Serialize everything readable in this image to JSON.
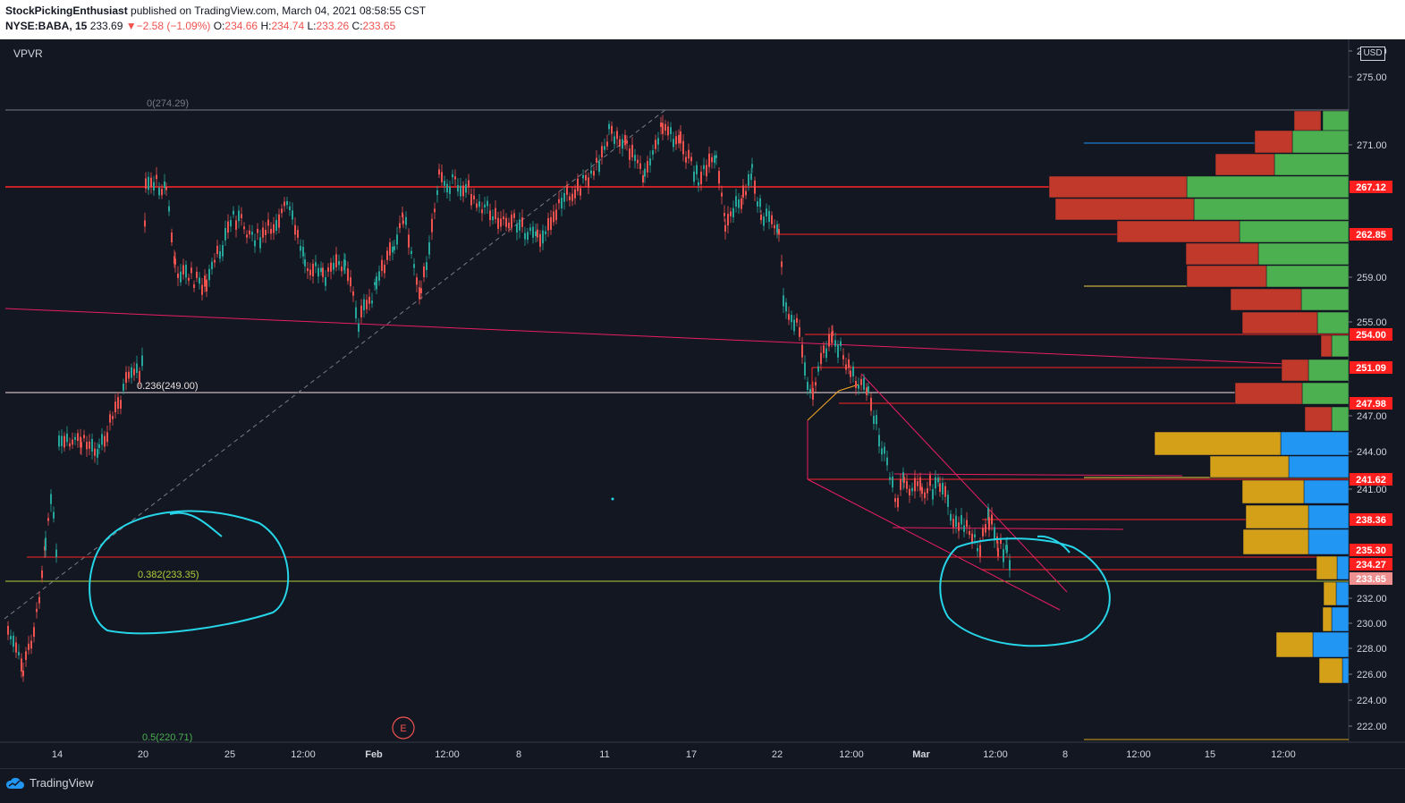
{
  "header": {
    "author": "StockPickingEnthusiast",
    "published_text": "published on TradingView.com, March 04, 2021 08:58:55 CST",
    "symbol": "NYSE:BABA, 15",
    "price": "233.69",
    "change_arrow": "▼",
    "change": "−2.58 (−1.09%)",
    "o_label": "O:",
    "o_value": "234.66",
    "h_label": "H:",
    "h_value": "234.74",
    "l_label": "L:",
    "l_value": "233.26",
    "c_label": "C:",
    "c_value": "233.65"
  },
  "indicator": {
    "name": "VPVR"
  },
  "currency": "USD",
  "footer": {
    "brand": "TradingView"
  },
  "colors": {
    "background": "#131722",
    "resistance_line": "#ff2626",
    "trendline": "#e91e63",
    "circle": "#26d5e8",
    "vp_up": "#4caf50",
    "vp_down": "#c0392b",
    "vp_value_up": "#2196f3",
    "vp_value_down": "#d4a017"
  },
  "chart_data": {
    "type": "candlestick",
    "y_range": [
      220.71,
      278
    ],
    "y_axis_ticks": [
      "277.50",
      "275.00",
      "271.00",
      "259.00",
      "255.00",
      "247.00",
      "244.00",
      "241.00",
      "232.00",
      "230.00",
      "228.00",
      "226.00",
      "224.00",
      "222.00"
    ],
    "x_axis_ticks": [
      "14",
      "20",
      "25",
      "12:00",
      "Feb",
      "12:00",
      "8",
      "11",
      "17",
      "22",
      "12:00",
      "Mar",
      "12:00",
      "8",
      "12:00",
      "15",
      "12:00"
    ],
    "price_labels": [
      "267.12",
      "262.85",
      "254.00",
      "251.09",
      "247.98",
      "241.62",
      "238.36",
      "235.30",
      "234.27",
      "233.65"
    ],
    "fibonacci": [
      {
        "label": "0(274.29)",
        "value": 274.29
      },
      {
        "label": "0.236(249.00)",
        "value": 249.0
      },
      {
        "label": "0.382(233.35)",
        "value": 233.35
      },
      {
        "label": "0.5(220.71)",
        "value": 220.71
      }
    ],
    "earnings_marker": "E"
  }
}
